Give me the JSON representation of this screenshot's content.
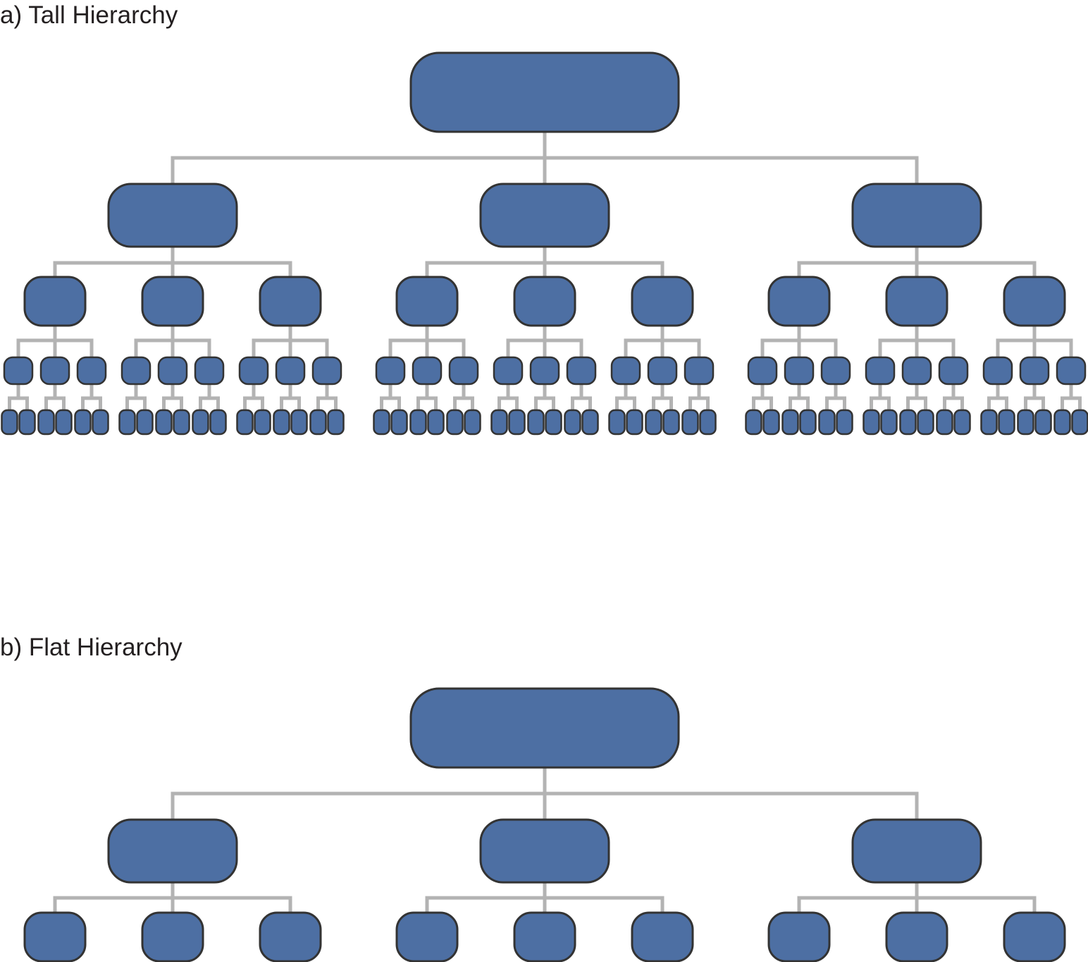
{
  "diagrams": [
    {
      "title": "a) Tall Hierarchy",
      "levels": 5,
      "branching": [
        3,
        3,
        3,
        2
      ]
    },
    {
      "title": "b) Flat Hierarchy",
      "levels": 3,
      "branching": [
        3,
        3
      ]
    }
  ],
  "colors": {
    "node_fill": "#4d6fa3",
    "node_stroke": "#333333",
    "connector": "#b3b3b3",
    "text": "#231f20"
  }
}
